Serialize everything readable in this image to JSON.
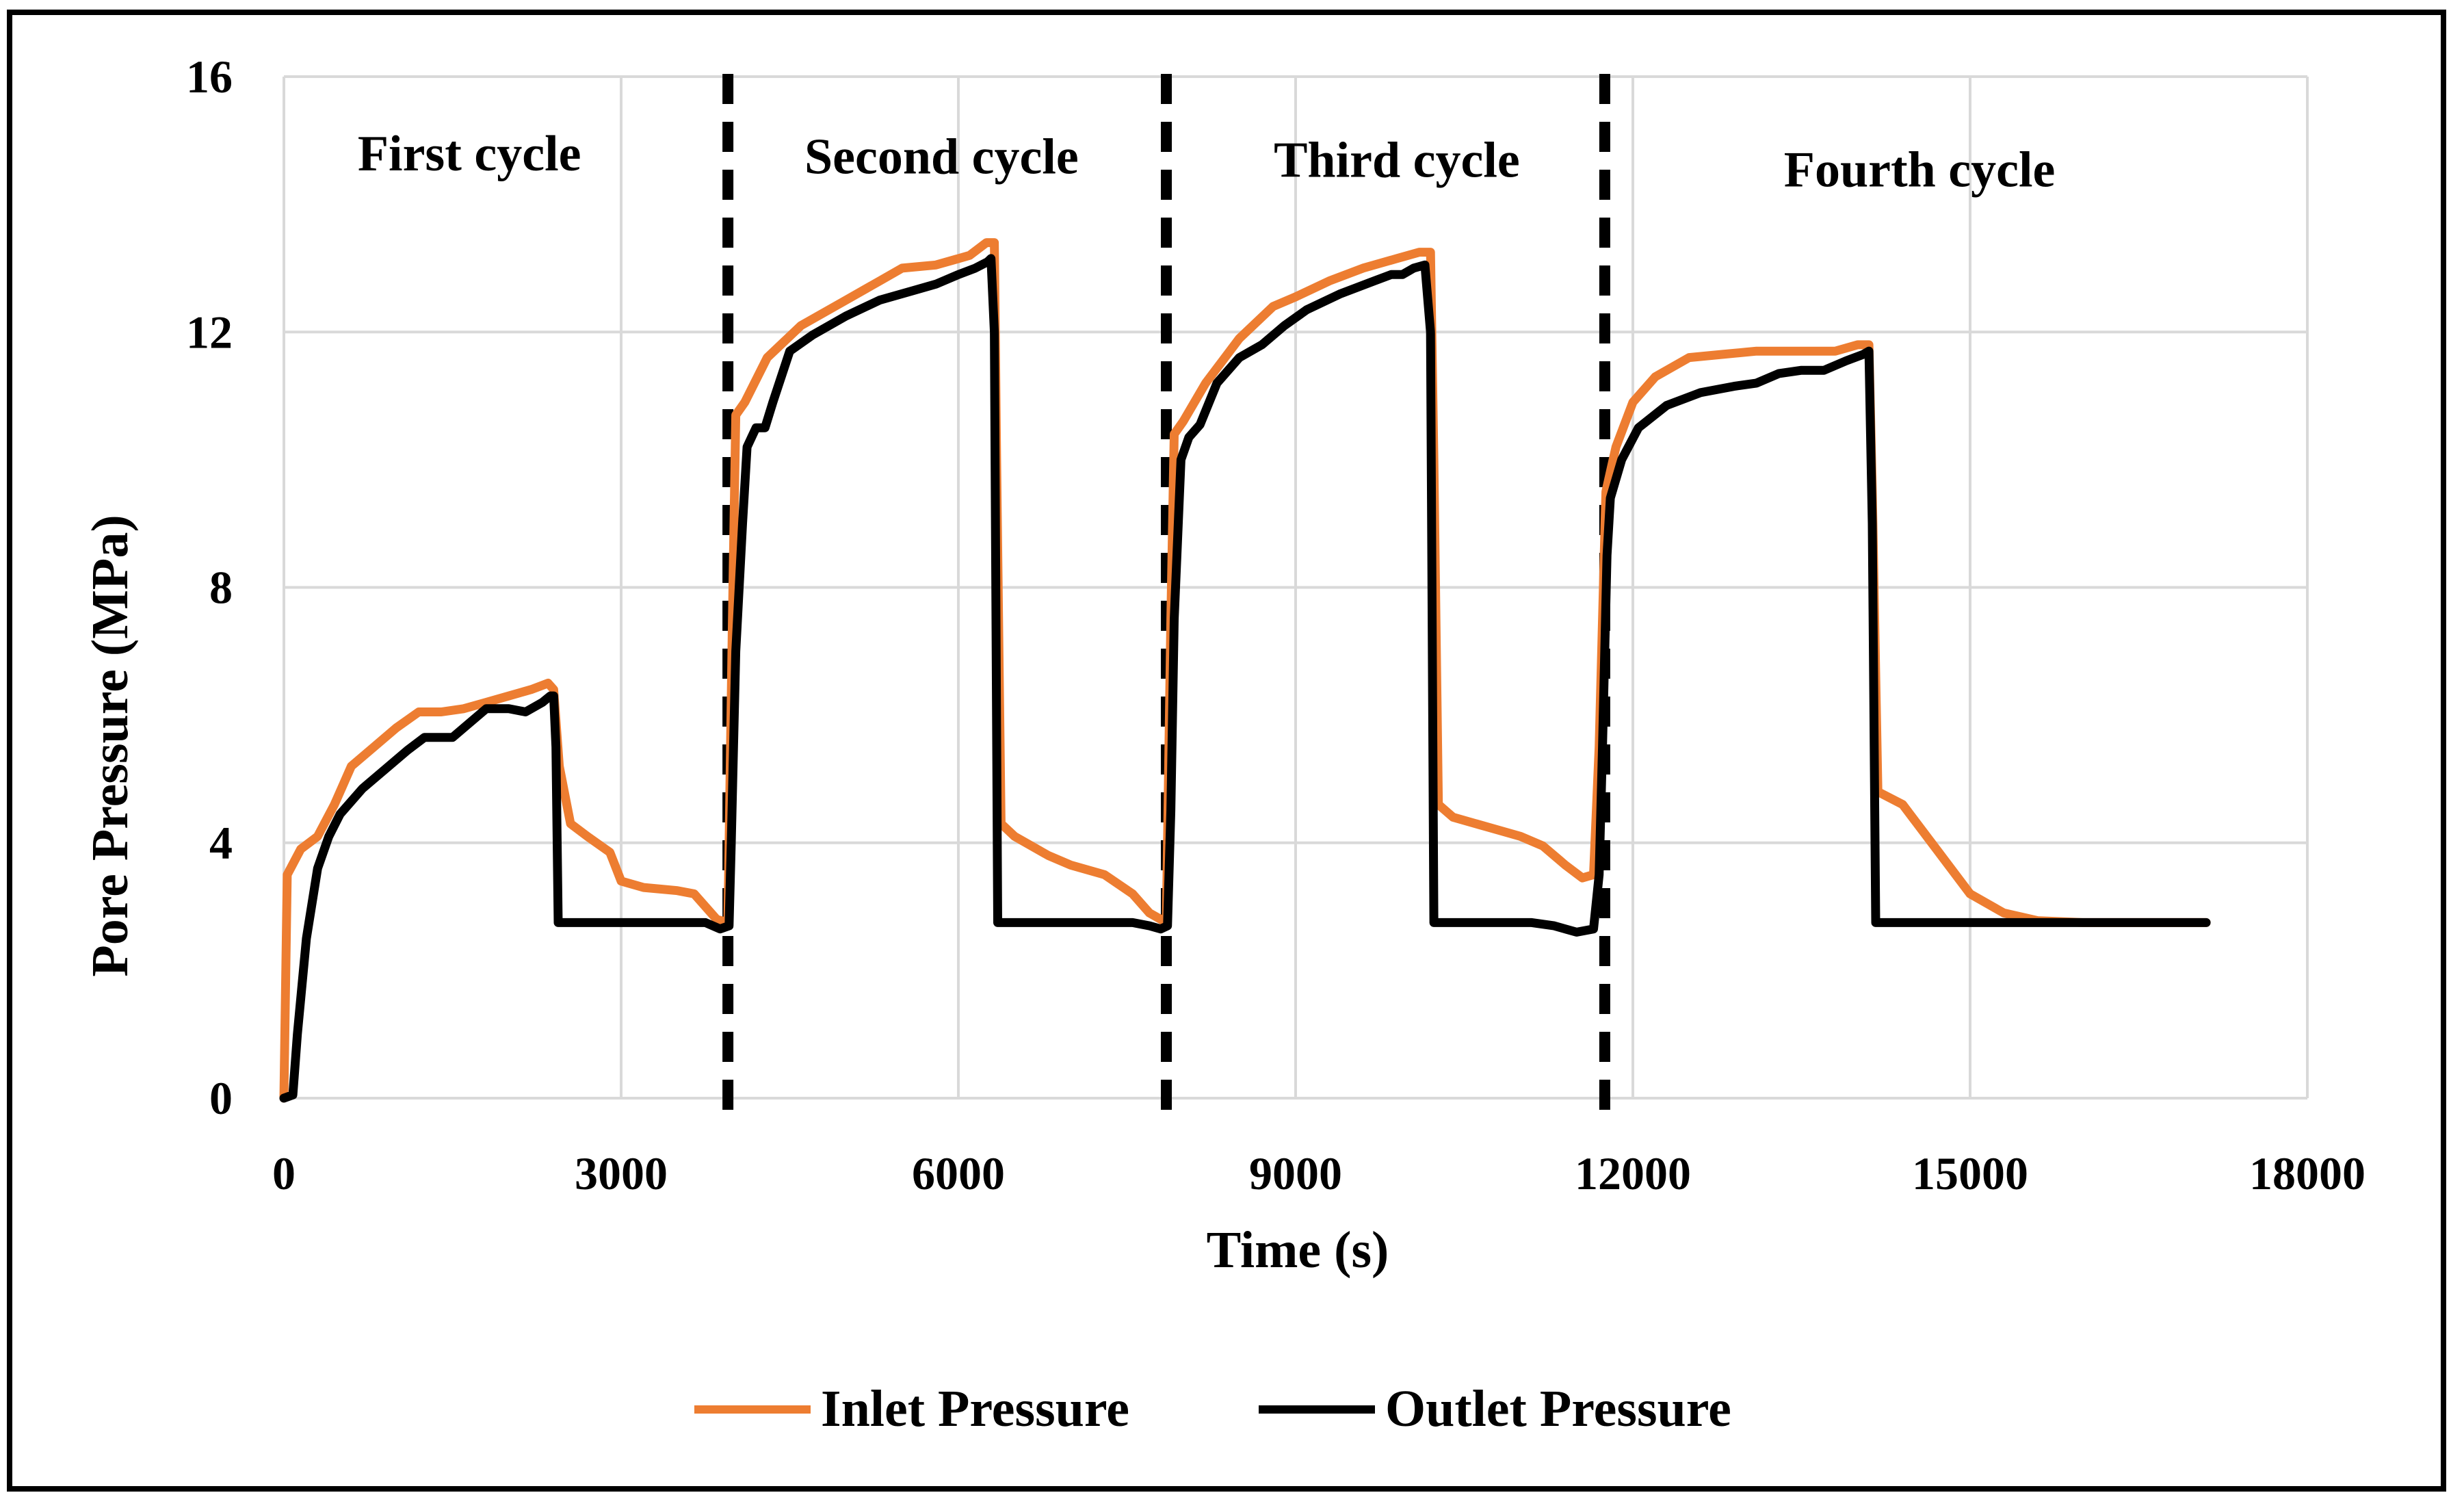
{
  "chart_data": {
    "type": "line",
    "title": "",
    "xlabel": "Time (s)",
    "ylabel": "Pore Pressure (MPa)",
    "xlim": [
      0,
      18000
    ],
    "ylim": [
      0,
      16
    ],
    "x_ticks": [
      0,
      3000,
      6000,
      9000,
      12000,
      15000,
      18000
    ],
    "x_tick_labels": [
      "0",
      "3000",
      "6000",
      "9000",
      "12000",
      "15000",
      "18000"
    ],
    "y_ticks": [
      0,
      4,
      8,
      12,
      16
    ],
    "y_tick_labels": [
      "0",
      "4",
      "8",
      "12",
      "16"
    ],
    "grid": true,
    "legend_position": "bottom",
    "cycle_dividers": [
      3950,
      7850,
      11750
    ],
    "annotations": [
      {
        "text": "First cycle",
        "x": 1650,
        "y": 14.8
      },
      {
        "text": "Second cycle",
        "x": 5850,
        "y": 14.75
      },
      {
        "text": "Third cycle",
        "x": 9900,
        "y": 14.7
      },
      {
        "text": "Fourth cycle",
        "x": 14550,
        "y": 14.55
      }
    ],
    "series": [
      {
        "name": "Inlet Pressure",
        "color": "#ED7D31",
        "points": [
          [
            0,
            0
          ],
          [
            30,
            3.5
          ],
          [
            150,
            3.9
          ],
          [
            300,
            4.1
          ],
          [
            450,
            4.6
          ],
          [
            600,
            5.2
          ],
          [
            800,
            5.5
          ],
          [
            1000,
            5.8
          ],
          [
            1200,
            6.05
          ],
          [
            1400,
            6.05
          ],
          [
            1600,
            6.1
          ],
          [
            1800,
            6.2
          ],
          [
            2000,
            6.3
          ],
          [
            2200,
            6.4
          ],
          [
            2350,
            6.5
          ],
          [
            2400,
            6.4
          ],
          [
            2450,
            5.2
          ],
          [
            2550,
            4.3
          ],
          [
            2700,
            4.1
          ],
          [
            2900,
            3.85
          ],
          [
            3000,
            3.4
          ],
          [
            3200,
            3.3
          ],
          [
            3500,
            3.25
          ],
          [
            3650,
            3.2
          ],
          [
            3850,
            2.8
          ],
          [
            3950,
            2.75
          ],
          [
            3990,
            7.5
          ],
          [
            4020,
            10.7
          ],
          [
            4100,
            10.9
          ],
          [
            4300,
            11.6
          ],
          [
            4600,
            12.1
          ],
          [
            5000,
            12.5
          ],
          [
            5300,
            12.8
          ],
          [
            5500,
            13.0
          ],
          [
            5800,
            13.05
          ],
          [
            6100,
            13.2
          ],
          [
            6250,
            13.4
          ],
          [
            6320,
            13.4
          ],
          [
            6340,
            10.0
          ],
          [
            6380,
            4.3
          ],
          [
            6500,
            4.1
          ],
          [
            6800,
            3.8
          ],
          [
            7000,
            3.65
          ],
          [
            7300,
            3.5
          ],
          [
            7550,
            3.2
          ],
          [
            7700,
            2.9
          ],
          [
            7800,
            2.8
          ],
          [
            7850,
            2.75
          ],
          [
            7890,
            7.5
          ],
          [
            7920,
            10.4
          ],
          [
            8000,
            10.6
          ],
          [
            8200,
            11.2
          ],
          [
            8500,
            11.9
          ],
          [
            8800,
            12.4
          ],
          [
            9000,
            12.55
          ],
          [
            9300,
            12.8
          ],
          [
            9600,
            13.0
          ],
          [
            9900,
            13.15
          ],
          [
            10100,
            13.25
          ],
          [
            10200,
            13.25
          ],
          [
            10230,
            10.0
          ],
          [
            10270,
            4.6
          ],
          [
            10400,
            4.4
          ],
          [
            10700,
            4.25
          ],
          [
            11000,
            4.1
          ],
          [
            11200,
            3.95
          ],
          [
            11400,
            3.65
          ],
          [
            11550,
            3.45
          ],
          [
            11650,
            3.5
          ],
          [
            11700,
            5.5
          ],
          [
            11760,
            9.5
          ],
          [
            11850,
            10.2
          ],
          [
            12000,
            10.9
          ],
          [
            12200,
            11.3
          ],
          [
            12500,
            11.6
          ],
          [
            12800,
            11.65
          ],
          [
            13100,
            11.7
          ],
          [
            13400,
            11.7
          ],
          [
            13800,
            11.7
          ],
          [
            14000,
            11.8
          ],
          [
            14100,
            11.8
          ],
          [
            14130,
            9.5
          ],
          [
            14180,
            4.8
          ],
          [
            14400,
            4.6
          ],
          [
            14700,
            3.9
          ],
          [
            15000,
            3.2
          ],
          [
            15300,
            2.9
          ],
          [
            15600,
            2.78
          ],
          [
            16000,
            2.75
          ],
          [
            17100,
            2.75
          ]
        ]
      },
      {
        "name": "Outlet Pressure",
        "color": "#000000",
        "points": [
          [
            0,
            0
          ],
          [
            80,
            0.05
          ],
          [
            120,
            1.0
          ],
          [
            200,
            2.5
          ],
          [
            300,
            3.6
          ],
          [
            400,
            4.1
          ],
          [
            500,
            4.45
          ],
          [
            700,
            4.85
          ],
          [
            900,
            5.15
          ],
          [
            1100,
            5.45
          ],
          [
            1250,
            5.65
          ],
          [
            1400,
            5.65
          ],
          [
            1500,
            5.65
          ],
          [
            1600,
            5.8
          ],
          [
            1800,
            6.1
          ],
          [
            2000,
            6.1
          ],
          [
            2150,
            6.05
          ],
          [
            2300,
            6.2
          ],
          [
            2370,
            6.3
          ],
          [
            2400,
            6.3
          ],
          [
            2420,
            5.5
          ],
          [
            2440,
            2.75
          ],
          [
            3600,
            2.75
          ],
          [
            3750,
            2.75
          ],
          [
            3880,
            2.65
          ],
          [
            3960,
            2.7
          ],
          [
            3980,
            4.0
          ],
          [
            4020,
            7.0
          ],
          [
            4080,
            9.0
          ],
          [
            4120,
            10.2
          ],
          [
            4200,
            10.5
          ],
          [
            4280,
            10.5
          ],
          [
            4350,
            10.9
          ],
          [
            4500,
            11.7
          ],
          [
            4700,
            11.95
          ],
          [
            5000,
            12.25
          ],
          [
            5300,
            12.5
          ],
          [
            5600,
            12.65
          ],
          [
            5800,
            12.75
          ],
          [
            6000,
            12.9
          ],
          [
            6150,
            13.0
          ],
          [
            6260,
            13.1
          ],
          [
            6290,
            13.15
          ],
          [
            6320,
            12.0
          ],
          [
            6350,
            2.75
          ],
          [
            7550,
            2.75
          ],
          [
            7700,
            2.7
          ],
          [
            7800,
            2.65
          ],
          [
            7860,
            2.7
          ],
          [
            7890,
            4.5
          ],
          [
            7920,
            7.5
          ],
          [
            7980,
            10.0
          ],
          [
            8050,
            10.35
          ],
          [
            8150,
            10.55
          ],
          [
            8300,
            11.2
          ],
          [
            8500,
            11.6
          ],
          [
            8700,
            11.8
          ],
          [
            8900,
            12.1
          ],
          [
            9100,
            12.35
          ],
          [
            9400,
            12.6
          ],
          [
            9700,
            12.8
          ],
          [
            9850,
            12.9
          ],
          [
            9950,
            12.9
          ],
          [
            10050,
            13.0
          ],
          [
            10150,
            13.05
          ],
          [
            10200,
            12.0
          ],
          [
            10230,
            2.75
          ],
          [
            11100,
            2.75
          ],
          [
            11300,
            2.7
          ],
          [
            11500,
            2.6
          ],
          [
            11650,
            2.65
          ],
          [
            11700,
            3.5
          ],
          [
            11730,
            5.5
          ],
          [
            11770,
            8.5
          ],
          [
            11800,
            9.4
          ],
          [
            11900,
            10.0
          ],
          [
            12050,
            10.5
          ],
          [
            12300,
            10.85
          ],
          [
            12600,
            11.05
          ],
          [
            12900,
            11.15
          ],
          [
            13100,
            11.2
          ],
          [
            13300,
            11.35
          ],
          [
            13500,
            11.4
          ],
          [
            13700,
            11.4
          ],
          [
            13900,
            11.55
          ],
          [
            14050,
            11.65
          ],
          [
            14100,
            11.7
          ],
          [
            14130,
            9.0
          ],
          [
            14160,
            2.75
          ],
          [
            17100,
            2.75
          ]
        ]
      }
    ]
  },
  "legend": {
    "items": [
      {
        "label": "Inlet Pressure",
        "color": "#ED7D31"
      },
      {
        "label": "Outlet Pressure",
        "color": "#000000"
      }
    ]
  }
}
